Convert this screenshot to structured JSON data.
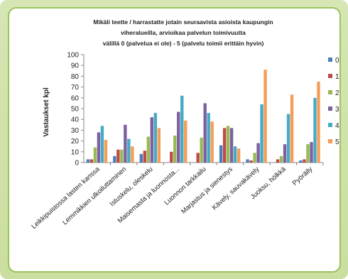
{
  "chart_data": {
    "type": "bar",
    "title_lines": [
      "Mikäli teette / harrastatte jotain seuraavista asioista kaupungin",
      "viheralueilla, arvioikaa palvelun toimivuutta",
      "välillä 0 (palvelua ei  ole) - 5 (palvelu toimii erittäin hyvin)"
    ],
    "ylabel": "Vastaukset kpl",
    "xlabel": "",
    "ylim": [
      0,
      100
    ],
    "yticks": [
      0,
      10,
      20,
      30,
      40,
      50,
      60,
      70,
      80,
      90,
      100
    ],
    "grid": false,
    "legend_position": "right",
    "categories": [
      "Leikkipuistossa lasten kanssa",
      "Lemmikkien ulkoiluttaminen",
      "Istuskelu, oleskelu",
      "Maisemasta ja luonnosta...",
      "Luonnon tarkkailu",
      "Marjastus ja sienestys",
      "Kävely, sauvakävely",
      "Juoksu, hölkkä",
      "Pyöräily"
    ],
    "series": [
      {
        "name": "0",
        "color": "#4a7ebb",
        "values": [
          3,
          6,
          8,
          0,
          0,
          16,
          3,
          0,
          2
        ]
      },
      {
        "name": "1",
        "color": "#be4b48",
        "values": [
          3,
          12,
          11,
          10,
          9,
          32,
          2,
          3,
          3
        ]
      },
      {
        "name": "2",
        "color": "#98b954",
        "values": [
          14,
          12,
          24,
          25,
          23,
          34,
          9,
          6,
          17
        ]
      },
      {
        "name": "3",
        "color": "#7d60a0",
        "values": [
          28,
          35,
          42,
          47,
          55,
          32,
          18,
          17,
          19
        ]
      },
      {
        "name": "4",
        "color": "#46aac5",
        "values": [
          34,
          22,
          46,
          62,
          46,
          15,
          54,
          45,
          60
        ]
      },
      {
        "name": "5",
        "color": "#f59d56",
        "values": [
          21,
          15,
          32,
          39,
          38,
          13,
          86,
          63,
          75
        ]
      }
    ]
  }
}
